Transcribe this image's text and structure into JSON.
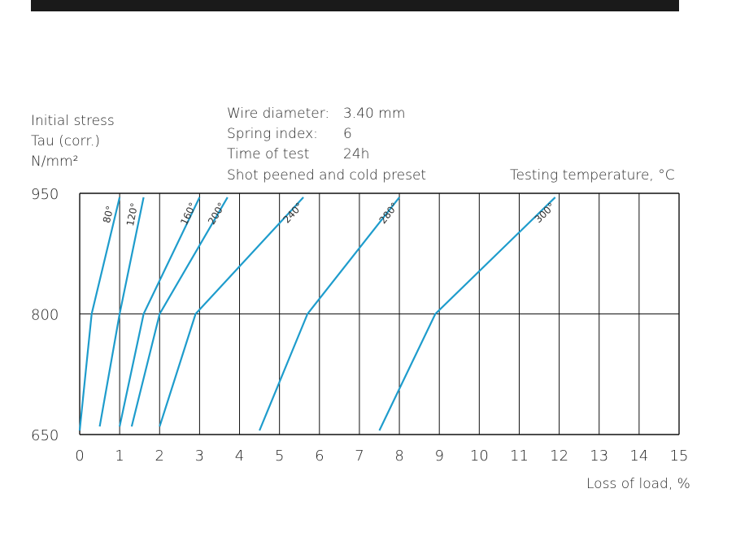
{
  "header_bar": {
    "color": "#1a1a1a"
  },
  "ylabel_lines": [
    "Initial stress",
    "Tau (corr.)",
    "N/mm²"
  ],
  "specs": {
    "wire_label": "Wire diameter:",
    "wire_value": "3.40 mm",
    "index_label": "Spring index:",
    "index_value": "6",
    "time_label": "Time of test",
    "time_value": "24h",
    "note": "Shot peened and cold preset"
  },
  "legend_title": "Testing temperature, °C",
  "chart_data": {
    "type": "line",
    "title": "",
    "xlabel": "Loss of load, %",
    "ylabel": "Initial stress Tau (corr.) N/mm²",
    "xlim": [
      0,
      15
    ],
    "ylim": [
      650,
      950
    ],
    "x_ticks": [
      "0",
      "1",
      "2",
      "3",
      "4",
      "5",
      "6",
      "7",
      "8",
      "9",
      "10",
      "11",
      "12",
      "13",
      "14",
      "15"
    ],
    "y_ticks": [
      "650",
      "800",
      "950"
    ],
    "grid": {
      "vertical": true,
      "horizontal_at": [
        800
      ]
    },
    "line_color": "#1e9ccc",
    "series": [
      {
        "name": "80°",
        "points": [
          [
            0.0,
            655
          ],
          [
            0.3,
            800
          ],
          [
            1.0,
            945
          ]
        ]
      },
      {
        "name": "120°",
        "points": [
          [
            0.5,
            660
          ],
          [
            1.0,
            800
          ],
          [
            1.6,
            945
          ]
        ]
      },
      {
        "name": "160°",
        "points": [
          [
            1.0,
            660
          ],
          [
            1.6,
            800
          ],
          [
            3.0,
            945
          ]
        ]
      },
      {
        "name": "200°",
        "points": [
          [
            1.3,
            660
          ],
          [
            2.0,
            800
          ],
          [
            3.7,
            945
          ]
        ]
      },
      {
        "name": "240°",
        "points": [
          [
            2.0,
            660
          ],
          [
            2.9,
            800
          ],
          [
            5.6,
            945
          ]
        ]
      },
      {
        "name": "280°",
        "points": [
          [
            4.5,
            655
          ],
          [
            5.7,
            800
          ],
          [
            8.0,
            945
          ]
        ]
      },
      {
        "name": "300°",
        "points": [
          [
            7.5,
            655
          ],
          [
            8.9,
            800
          ],
          [
            11.9,
            945
          ]
        ]
      }
    ]
  }
}
